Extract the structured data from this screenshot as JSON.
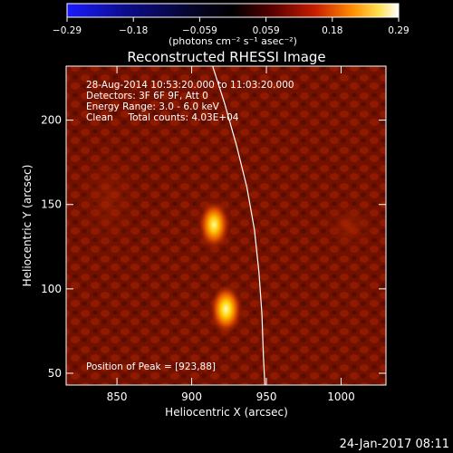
{
  "chart_data": {
    "type": "heatmap",
    "title": "Reconstructed RHESSI Image",
    "xlabel": "Heliocentric X (arcsec)",
    "ylabel": "Heliocentric Y (arcsec)",
    "xlim": [
      816,
      1030
    ],
    "ylim": [
      43,
      232
    ],
    "x_ticks": [
      850,
      900,
      950,
      1000
    ],
    "y_ticks": [
      50,
      100,
      150,
      200
    ],
    "colorbar": {
      "min": -0.29,
      "max": 0.29,
      "ticks": [
        "−0.29",
        "−0.18",
        "−0.059",
        "0.059",
        "0.18",
        "0.29"
      ],
      "label": "(photons cm⁻² s⁻¹ asec⁻²)",
      "colormap": "blue-black-red-yellow-white"
    },
    "info_lines": [
      "28-Aug-2014 10:53:20.000 to 11:03:20.000",
      "Detectors: 3F 6F 9F, Att 0",
      "Energy Range: 3.0 - 6.0 keV",
      "Clean     Total counts: 4.03E+04"
    ],
    "peak_label": "Position of Peak = [923,88]",
    "sources": [
      {
        "x": 915,
        "y": 138,
        "relative_intensity": 0.85
      },
      {
        "x": 923,
        "y": 88,
        "relative_intensity": 1.0
      }
    ],
    "limb_curve": [
      [
        914,
        232
      ],
      [
        922,
        210
      ],
      [
        930,
        185
      ],
      [
        937,
        160
      ],
      [
        942,
        135
      ],
      [
        945,
        110
      ],
      [
        947,
        85
      ],
      [
        948,
        60
      ],
      [
        949,
        43
      ]
    ]
  },
  "footer": {
    "timestamp": "24-Jan-2017 08:11"
  },
  "colors": {
    "background": "#000000",
    "text": "#ffffff"
  }
}
